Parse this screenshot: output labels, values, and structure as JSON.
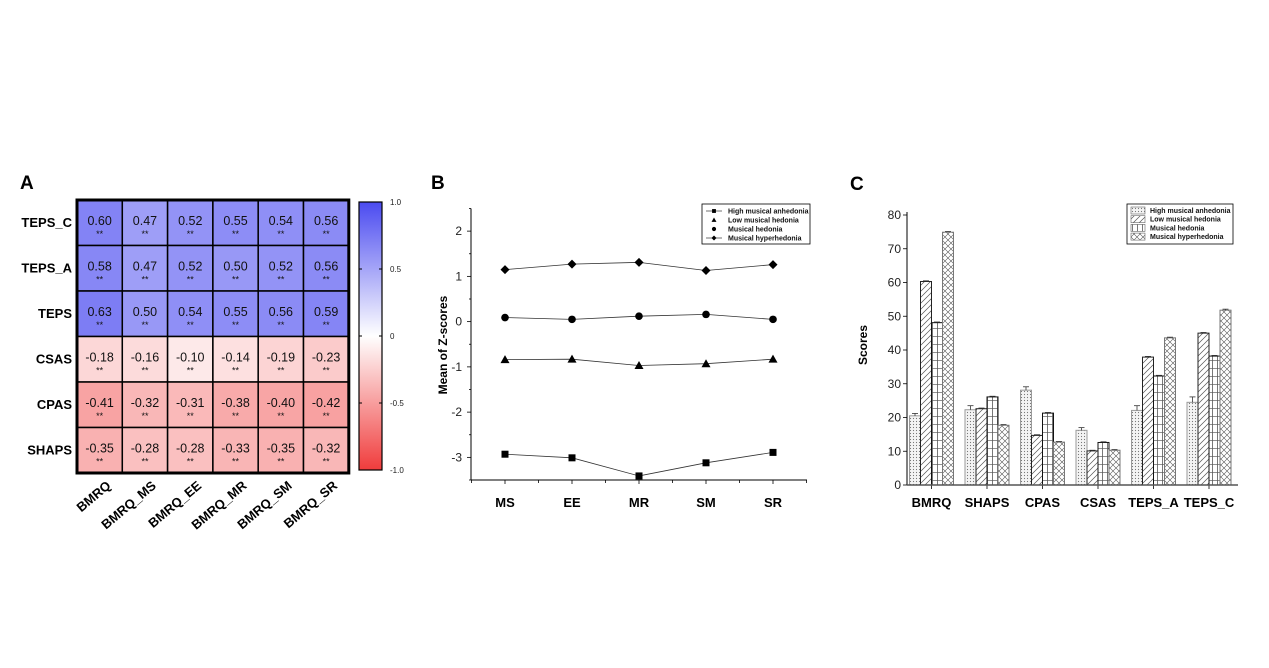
{
  "chart_data": [
    {
      "panel": "A",
      "type": "heatmap",
      "rows": [
        "TEPS_C",
        "TEPS_A",
        "TEPS",
        "CSAS",
        "CPAS",
        "SHAPS"
      ],
      "columns": [
        "BMRQ",
        "BMRQ_MS",
        "BMRQ_EE",
        "BMRQ_MR",
        "BMRQ_SM",
        "BMRQ_SR"
      ],
      "values": [
        [
          0.6,
          0.47,
          0.52,
          0.55,
          0.54,
          0.56
        ],
        [
          0.58,
          0.47,
          0.52,
          0.5,
          0.52,
          0.56
        ],
        [
          0.63,
          0.5,
          0.54,
          0.55,
          0.56,
          0.59
        ],
        [
          -0.18,
          -0.16,
          -0.1,
          -0.14,
          -0.19,
          -0.23
        ],
        [
          -0.41,
          -0.32,
          -0.31,
          -0.38,
          -0.4,
          -0.42
        ],
        [
          -0.35,
          -0.28,
          -0.28,
          -0.33,
          -0.35,
          -0.32
        ]
      ],
      "labels": [
        [
          "0.60",
          "0.47",
          "0.52",
          "0.55",
          "0.54",
          "0.56"
        ],
        [
          "0.58",
          "0.47",
          "0.52",
          "0.50",
          "0.52",
          "0.56"
        ],
        [
          "0.63",
          "0.50",
          "0.54",
          "0.55",
          "0.56",
          "0.59"
        ],
        [
          "-0.18",
          "-0.16",
          "-0.10",
          "-0.14",
          "-0.19",
          "-0.23"
        ],
        [
          "-0.41",
          "-0.32",
          "-0.31",
          "-0.38",
          "-0.40",
          "-0.42"
        ],
        [
          "-0.35",
          "-0.28",
          "-0.28",
          "-0.33",
          "-0.35",
          "-0.32"
        ]
      ],
      "significance": "**",
      "colorbar": {
        "range": [
          -1.0,
          1.0
        ],
        "ticks": [
          1.0,
          0.5,
          0,
          -0.5,
          -1.0
        ],
        "tick_labels": [
          "1.0",
          "0.5",
          "0",
          "-0.5",
          "-1.0"
        ],
        "high_color": "#4b4bf0",
        "mid_color": "#ffffff",
        "low_color": "#f03c3c"
      }
    },
    {
      "panel": "B",
      "type": "line",
      "xlabel": "",
      "ylabel": "Mean of Z-scores",
      "categories": [
        "MS",
        "EE",
        "MR",
        "SM",
        "SR"
      ],
      "ylim": [
        -3.5,
        2.5
      ],
      "yticks": [
        2,
        1,
        0,
        -1,
        -2,
        -3
      ],
      "ytick_labels": [
        "2",
        "1",
        "0",
        "-1",
        "-2",
        "-3"
      ],
      "legend_position": "top-right",
      "series": [
        {
          "name": "High musical anhedonia",
          "marker": "square",
          "values": [
            -2.93,
            -3.01,
            -3.41,
            -3.12,
            -2.89
          ]
        },
        {
          "name": "Low musical hedonia",
          "marker": "triangle",
          "values": [
            -0.84,
            -0.83,
            -0.97,
            -0.93,
            -0.83
          ]
        },
        {
          "name": "Musical hedonia",
          "marker": "circle",
          "values": [
            0.09,
            0.05,
            0.12,
            0.16,
            0.05
          ]
        },
        {
          "name": "Musical hyperhedonia",
          "marker": "diamond",
          "values": [
            1.15,
            1.27,
            1.31,
            1.13,
            1.26
          ]
        }
      ]
    },
    {
      "panel": "C",
      "type": "bar",
      "xlabel": "",
      "ylabel": "Scores",
      "categories": [
        "BMRQ",
        "SHAPS",
        "CPAS",
        "CSAS",
        "TEPS_A",
        "TEPS_C"
      ],
      "ylim": [
        0,
        80
      ],
      "yticks": [
        0,
        10,
        20,
        30,
        40,
        50,
        60,
        70,
        80
      ],
      "ytick_labels": [
        "0",
        "10",
        "20",
        "30",
        "40",
        "50",
        "60",
        "70",
        "80"
      ],
      "legend_position": "top-right",
      "series": [
        {
          "name": "High musical anhedonia",
          "pattern": "dots",
          "values": [
            20.5,
            22.3,
            28.1,
            16.2,
            22.1,
            24.5
          ],
          "errors": [
            0.7,
            1.2,
            1.0,
            0.8,
            1.4,
            1.6
          ]
        },
        {
          "name": "Low musical hedonia",
          "pattern": "diagonal",
          "values": [
            60.3,
            22.6,
            14.7,
            10.1,
            37.9,
            45.0
          ],
          "errors": [
            0.2,
            0.2,
            0.2,
            0.2,
            0.2,
            0.2
          ]
        },
        {
          "name": "Musical hedonia",
          "pattern": "grid",
          "values": [
            48.1,
            26.1,
            21.3,
            12.6,
            32.3,
            38.2
          ],
          "errors": [
            0.2,
            0.2,
            0.2,
            0.2,
            0.2,
            0.2
          ]
        },
        {
          "name": "Musical hyperhedonia",
          "pattern": "crosshatch",
          "values": [
            74.9,
            17.7,
            12.7,
            10.3,
            43.6,
            51.8
          ],
          "errors": [
            0.2,
            0.2,
            0.2,
            0.2,
            0.2,
            0.3
          ]
        }
      ]
    }
  ],
  "panels": {
    "a": "A",
    "b": "B",
    "c": "C"
  }
}
